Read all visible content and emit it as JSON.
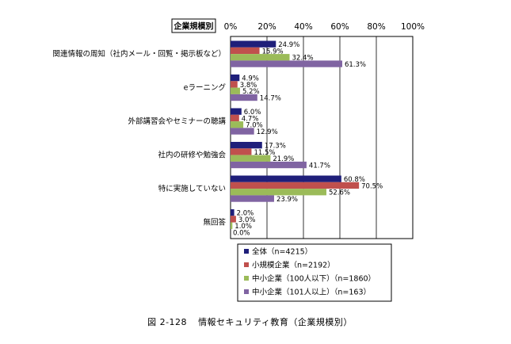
{
  "chart_data": {
    "type": "bar",
    "orientation": "horizontal",
    "header_label": "企業規模別",
    "xlim": [
      0,
      100
    ],
    "ticks": [
      "0%",
      "20%",
      "40%",
      "60%",
      "80%",
      "100%"
    ],
    "categories": [
      "関連情報の周知（社内メール・回覧・掲示板など）",
      "eラーニング",
      "外部講習会やセミナーの聴講",
      "社内の研修や勉強会",
      "特に実施していない",
      "無回答"
    ],
    "series": [
      {
        "name": "全体（n=4215）",
        "color": "#1f1f7a",
        "values": [
          24.9,
          4.9,
          6.0,
          17.3,
          60.8,
          2.0
        ]
      },
      {
        "name": "小規模企業（n=2192）",
        "color": "#c0504d",
        "values": [
          15.9,
          3.8,
          4.7,
          11.5,
          70.5,
          3.0
        ]
      },
      {
        "name": "中小企業（100人以下）（n=1860）",
        "color": "#9bbb59",
        "values": [
          32.4,
          5.2,
          7.0,
          21.9,
          52.6,
          1.0
        ]
      },
      {
        "name": "中小企業（101人以上）（n=163）",
        "color": "#8064a2",
        "values": [
          61.3,
          14.7,
          12.9,
          41.7,
          23.9,
          0.0
        ]
      }
    ],
    "grid": true,
    "legend_position": "bottom"
  },
  "caption": {
    "number": "図 2-128",
    "title": "情報セキュリティ教育（企業規模別）"
  }
}
